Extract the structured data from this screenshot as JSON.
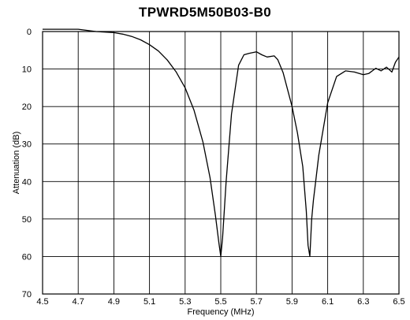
{
  "chart_data": {
    "type": "line",
    "title": "TPWRD5M50B03-B0",
    "xlabel": "Frequency  (MHz)",
    "ylabel": "Attenuation (dB)",
    "xlim": [
      4.5,
      6.5
    ],
    "ylim": [
      0,
      70
    ],
    "y_inverted": true,
    "grid": true,
    "x_ticks": [
      4.5,
      4.7,
      4.9,
      5.1,
      5.3,
      5.5,
      5.7,
      5.9,
      6.1,
      6.3,
      6.5
    ],
    "x_tick_labels": [
      "4.5",
      "4.7",
      "4.9",
      "5.1",
      "5.3",
      "5.5",
      "5.7",
      "5.9",
      "6.1",
      "6.3",
      "6.5"
    ],
    "y_ticks": [
      0,
      10,
      20,
      30,
      40,
      50,
      60,
      70
    ],
    "y_tick_labels": [
      "0",
      "10",
      "20",
      "30",
      "40",
      "50",
      "60",
      "70"
    ],
    "series": [
      {
        "color": "#000000",
        "x": [
          4.5,
          4.6,
          4.7,
          4.8,
          4.9,
          4.95,
          5.0,
          5.05,
          5.1,
          5.15,
          5.2,
          5.25,
          5.3,
          5.35,
          5.4,
          5.44,
          5.47,
          5.49,
          5.5,
          5.51,
          5.53,
          5.56,
          5.6,
          5.63,
          5.66,
          5.7,
          5.73,
          5.76,
          5.8,
          5.82,
          5.85,
          5.9,
          5.93,
          5.96,
          5.98,
          5.99,
          6.0,
          6.01,
          6.02,
          6.03,
          6.05,
          6.1,
          6.15,
          6.2,
          6.25,
          6.3,
          6.33,
          6.37,
          6.4,
          6.43,
          6.46,
          6.48,
          6.5
        ],
        "y": [
          -0.2,
          -0.2,
          -0.1,
          0.0,
          0.3,
          0.7,
          1.3,
          2.2,
          3.5,
          5.2,
          7.6,
          10.8,
          15.0,
          21.0,
          29.5,
          39.0,
          49.0,
          56.5,
          60.0,
          55.0,
          40.0,
          22.0,
          9.0,
          6.2,
          5.8,
          5.4,
          6.2,
          6.8,
          6.5,
          7.5,
          11.0,
          20.0,
          27.0,
          36.0,
          48.0,
          57.0,
          60.0,
          50.0,
          45.0,
          41.0,
          33.0,
          19.0,
          12.0,
          10.5,
          10.8,
          11.5,
          11.2,
          9.8,
          10.5,
          9.5,
          10.8,
          8.2,
          6.8
        ]
      }
    ]
  }
}
